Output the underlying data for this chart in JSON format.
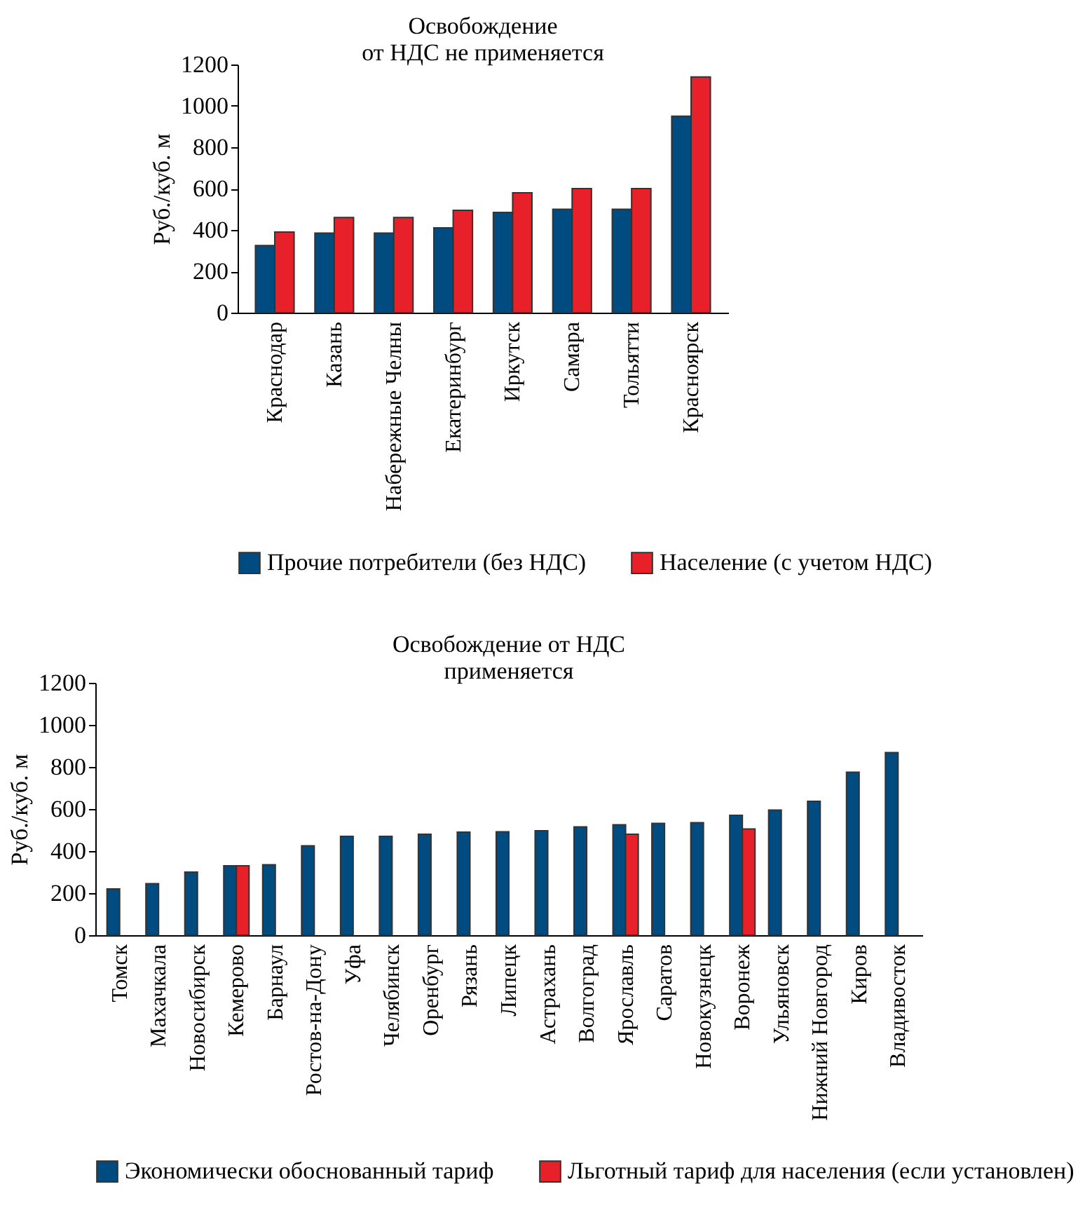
{
  "chart_data": [
    {
      "type": "bar",
      "title": "Освобождение\nот НДС не применяется",
      "ylabel": "Руб./куб. м",
      "categories": [
        "Краснодар",
        "Казань",
        "Набережные Челны",
        "Екатеринбург",
        "Иркутск",
        "Самара",
        "Тольятти",
        "Красноярск"
      ],
      "series": [
        {
          "name": "Прочие потребители (без НДС)",
          "color": "#004b7f",
          "values": [
            325,
            385,
            385,
            410,
            485,
            500,
            500,
            950
          ]
        },
        {
          "name": "Население (с учетом НДС)",
          "color": "#e8202a",
          "values": [
            390,
            460,
            460,
            495,
            580,
            600,
            600,
            1140
          ]
        }
      ],
      "ylim": [
        0,
        1200
      ],
      "yticks": [
        0,
        200,
        400,
        600,
        800,
        1000,
        1200
      ],
      "legend": "bottom"
    },
    {
      "type": "bar",
      "title": "Освобождение от НДС\nприменяется",
      "ylabel": "Руб./куб. м",
      "categories": [
        "Томск",
        "Махачкала",
        "Новосибирск",
        "Кемерово",
        "Барнаул",
        "Ростов-на-Дону",
        "Уфа",
        "Челябинск",
        "Оренбург",
        "Рязань",
        "Липецк",
        "Астрахань",
        "Волгоград",
        "Ярославль",
        "Саратов",
        "Новокузнецк",
        "Воронеж",
        "Ульяновск",
        "Нижний Новгород",
        "Киров",
        "Владивосток"
      ],
      "series": [
        {
          "name": "Экономически обоснованный тариф",
          "color": "#004b7f",
          "values": [
            220,
            245,
            300,
            330,
            335,
            425,
            470,
            470,
            480,
            490,
            492,
            497,
            515,
            525,
            532,
            535,
            570,
            595,
            637,
            775,
            868
          ]
        },
        {
          "name": "Льготный тариф для населения (если установлен)",
          "color": "#e8202a",
          "values": [
            null,
            null,
            null,
            330,
            null,
            null,
            null,
            null,
            null,
            null,
            null,
            null,
            null,
            480,
            null,
            null,
            505,
            null,
            null,
            null,
            null
          ]
        }
      ],
      "ylim": [
        0,
        1200
      ],
      "yticks": [
        0,
        200,
        400,
        600,
        800,
        1000,
        1200
      ],
      "legend": "bottom"
    }
  ]
}
